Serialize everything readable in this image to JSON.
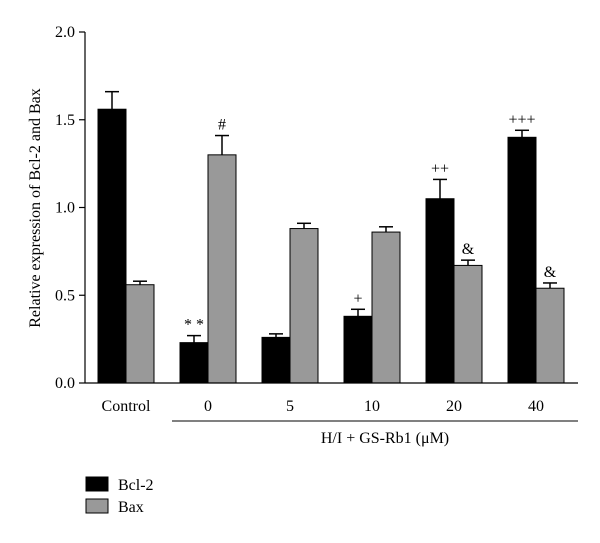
{
  "chart_data": {
    "type": "bar",
    "ylabel": "Relative expression of Bcl-2 and Bax",
    "ylim": [
      0,
      2.0
    ],
    "yticks": [
      "0.0",
      "0.5",
      "1.0",
      "1.5",
      "2.0"
    ],
    "categories": [
      "Control",
      "0",
      "5",
      "10",
      "20",
      "40"
    ],
    "group_label": "H/I + GS-Rb1 (μM)",
    "series": [
      {
        "name": "Bcl-2",
        "color": "#000000",
        "values": [
          1.56,
          0.23,
          0.26,
          0.38,
          1.05,
          1.4
        ],
        "errors": [
          0.1,
          0.04,
          0.02,
          0.04,
          0.11,
          0.04
        ],
        "annotations": [
          "",
          "* *",
          "",
          "+",
          "++",
          "+++"
        ]
      },
      {
        "name": "Bax",
        "color": "#999999",
        "values": [
          0.56,
          1.3,
          0.88,
          0.86,
          0.67,
          0.54
        ],
        "errors": [
          0.02,
          0.11,
          0.03,
          0.03,
          0.03,
          0.03
        ],
        "annotations": [
          "",
          "#",
          "",
          "",
          "&",
          "&"
        ]
      }
    ],
    "legend_position": "bottom-left"
  }
}
